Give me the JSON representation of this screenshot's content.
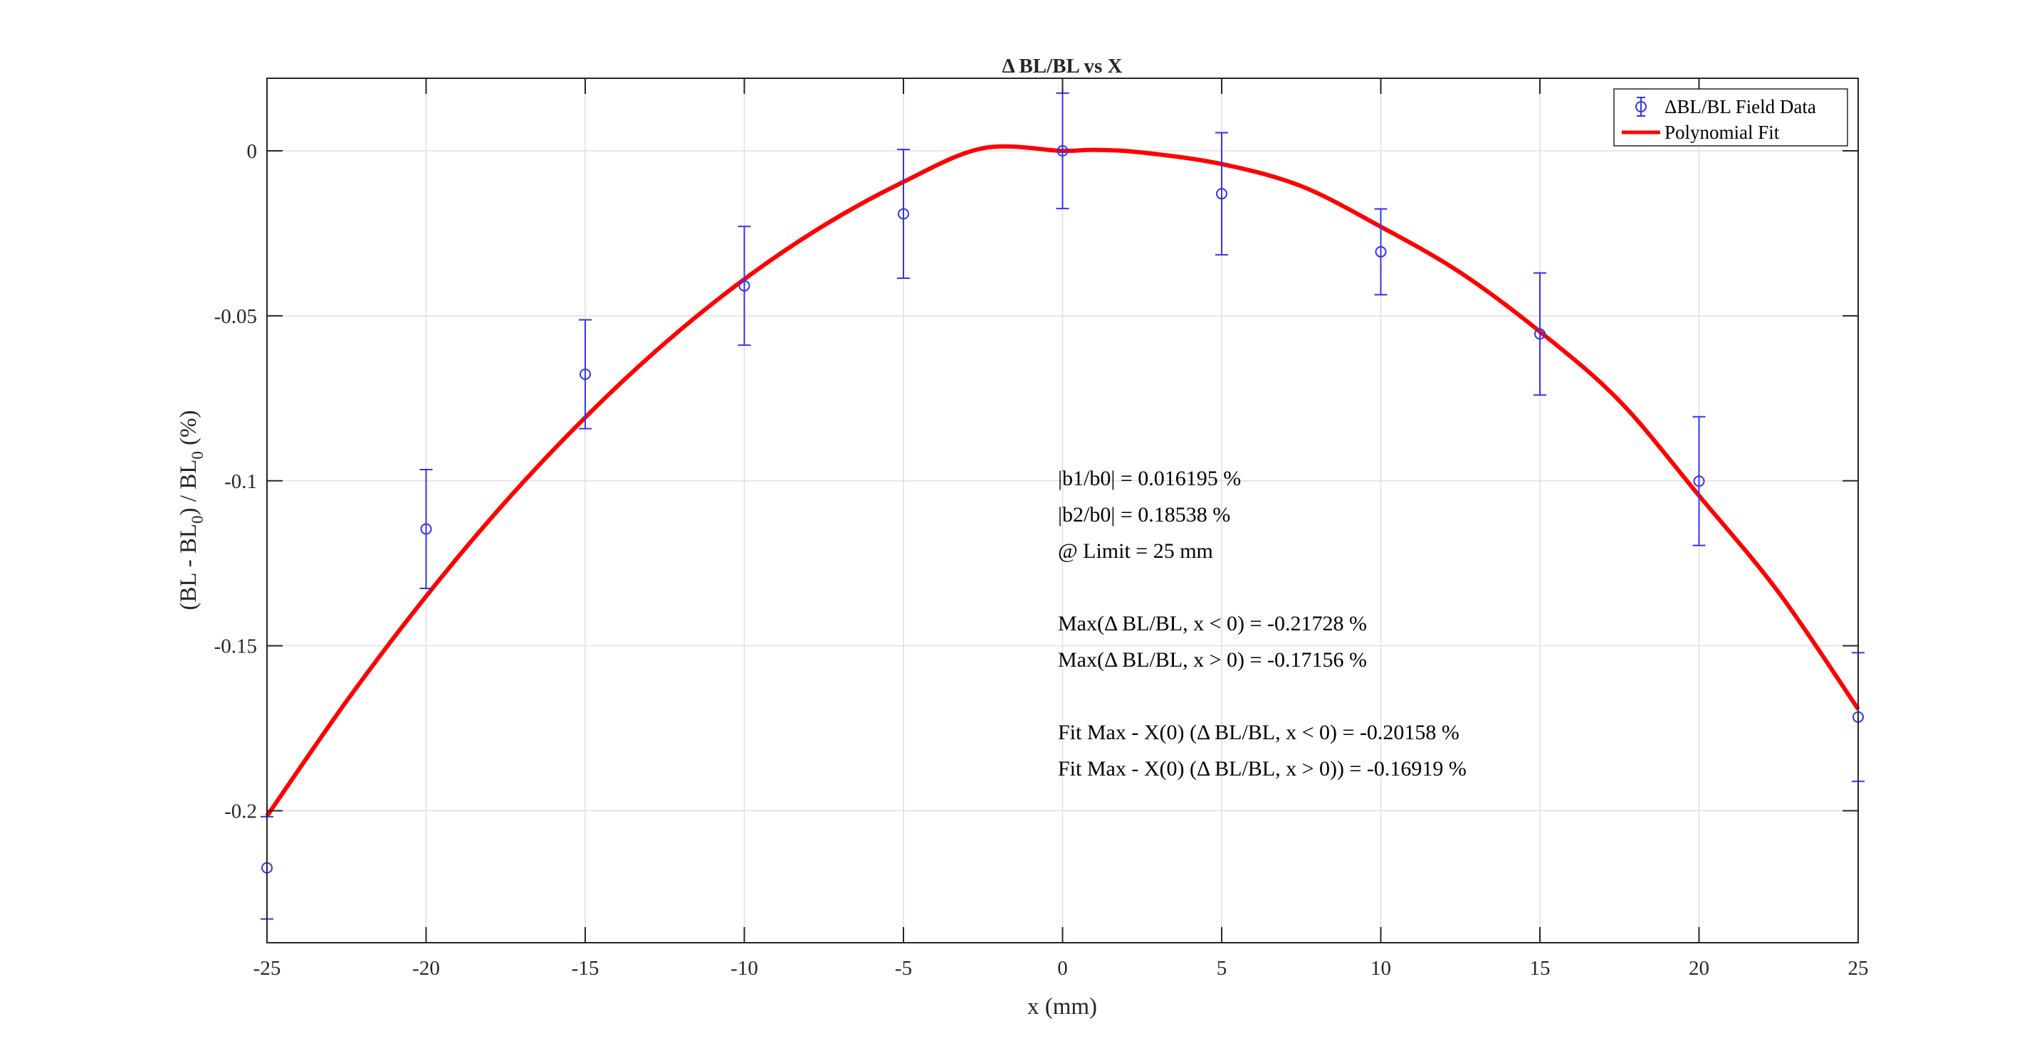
{
  "chart_data": {
    "type": "scatter",
    "title": "Δ BL/BL vs X",
    "xlabel": "x (mm)",
    "ylabel": {
      "p1": "(BL - BL",
      "sub1": "0",
      "p2": ") / BL",
      "sub2": "0",
      "p3": " (%)"
    },
    "xlim": [
      -25,
      25
    ],
    "ylim": [
      -0.24,
      0.022
    ],
    "xticks": [
      -25,
      -20,
      -15,
      -10,
      -5,
      0,
      5,
      10,
      15,
      20,
      25
    ],
    "yticks": [
      0,
      -0.05,
      -0.1,
      -0.15,
      -0.2
    ],
    "xtick_labels": [
      "-25",
      "-20",
      "-15",
      "-10",
      "-5",
      "0",
      "5",
      "10",
      "15",
      "20",
      "25"
    ],
    "ytick_labels": [
      "0",
      "-0.05",
      "-0.1",
      "-0.15",
      "-0.2"
    ],
    "grid": true,
    "legend_position": "top-right",
    "series": [
      {
        "name": "ΔBL/BL Field Data",
        "kind": "errorbar",
        "color": "#3333ee",
        "x": [
          -25,
          -20,
          -15,
          -10,
          -5,
          0,
          5,
          10,
          15,
          20,
          25
        ],
        "y": [
          -0.2173,
          -0.1146,
          -0.0677,
          -0.0409,
          -0.0191,
          0.0,
          -0.013,
          -0.0306,
          -0.0555,
          -0.1001,
          -0.1716
        ],
        "err": [
          0.0155,
          0.018,
          0.0165,
          0.018,
          0.0195,
          0.0175,
          0.0185,
          0.013,
          0.0185,
          0.0195,
          0.0195
        ]
      },
      {
        "name": "Polynomial Fit",
        "kind": "line",
        "color": "#ff0000",
        "x": [
          -25,
          -22.5,
          -20,
          -17.5,
          -15,
          -12.5,
          -10,
          -7.5,
          -5,
          -2.5,
          0,
          1,
          2.5,
          5,
          7.5,
          10,
          12.5,
          15,
          17.5,
          20,
          22.5,
          25
        ],
        "y": [
          -0.2016,
          -0.1668,
          -0.135,
          -0.1063,
          -0.0808,
          -0.0583,
          -0.0389,
          -0.0226,
          -0.0094,
          0.0008,
          0.0,
          0.0003,
          -0.0005,
          -0.004,
          -0.0107,
          -0.023,
          -0.0369,
          -0.0548,
          -0.0758,
          -0.1045,
          -0.1338,
          -0.1692
        ]
      }
    ],
    "annotations": [
      "|b1/b0| = 0.016195 %",
      "|b2/b0| = 0.18538 %",
      "@ Limit = 25 mm",
      "Max(Δ BL/BL,  x < 0) = -0.21728 %",
      "Max(Δ BL/BL,  x > 0) = -0.17156 %",
      "Fit Max - X(0) (Δ BL/BL,  x < 0) = -0.20158 %",
      "Fit Max - X(0) (Δ BL/BL,  x > 0)) = -0.16919 %"
    ]
  }
}
